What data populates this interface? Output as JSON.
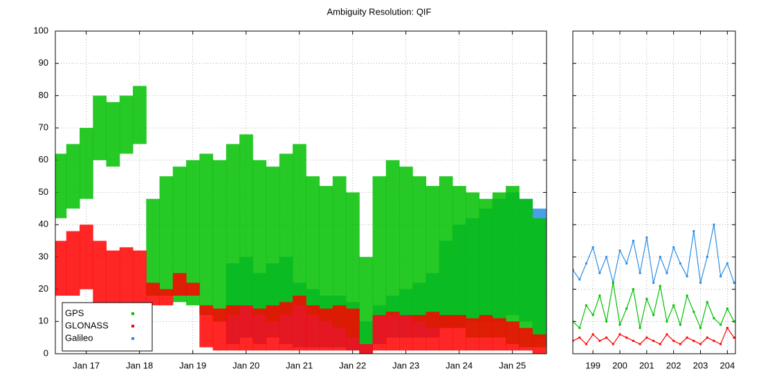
{
  "chart_data": [
    {
      "type": "band",
      "title": "Ambiguity Resolution: QIF",
      "legend": "lower left",
      "grid": true,
      "x": [
        2016.5,
        2016.75,
        2017,
        2017.25,
        2017.5,
        2017.75,
        2018,
        2018.25,
        2018.5,
        2018.75,
        2019,
        2019.25,
        2019.5,
        2019.75,
        2020,
        2020.25,
        2020.5,
        2020.75,
        2021,
        2021.25,
        2021.5,
        2021.75,
        2022,
        2022.25,
        2022.5,
        2022.75,
        2023,
        2023.25,
        2023.5,
        2023.75,
        2024,
        2024.25,
        2024.5,
        2024.75,
        2025,
        2025.25,
        2025.5
      ],
      "xlim": [
        2016.42,
        2025.64
      ],
      "xticks": [
        {
          "value": 2017,
          "label": "Jan 17"
        },
        {
          "value": 2018,
          "label": "Jan 18"
        },
        {
          "value": 2019,
          "label": "Jan 19"
        },
        {
          "value": 2020,
          "label": "Jan 20"
        },
        {
          "value": 2021,
          "label": "Jan 21"
        },
        {
          "value": 2022,
          "label": "Jan 22"
        },
        {
          "value": 2023,
          "label": "Jan 23"
        },
        {
          "value": 2024,
          "label": "Jan 24"
        },
        {
          "value": 2025,
          "label": "Jan 25"
        }
      ],
      "ylim": [
        0,
        100
      ],
      "yticks": [
        0,
        10,
        20,
        30,
        40,
        50,
        60,
        70,
        80,
        90,
        100
      ],
      "series": [
        {
          "name": "GPS",
          "color": "#00c000",
          "low": [
            42,
            45,
            48,
            60,
            58,
            62,
            65,
            18,
            18,
            16,
            15,
            12,
            10,
            12,
            15,
            12,
            10,
            12,
            15,
            12,
            10,
            8,
            5,
            3,
            12,
            12,
            12,
            10,
            8,
            8,
            8,
            5,
            5,
            5,
            3,
            2,
            2
          ],
          "high": [
            62,
            65,
            70,
            80,
            78,
            80,
            83,
            48,
            55,
            58,
            60,
            62,
            60,
            65,
            68,
            60,
            58,
            62,
            65,
            55,
            52,
            55,
            50,
            30,
            55,
            60,
            58,
            55,
            52,
            55,
            52,
            50,
            48,
            50,
            52,
            48,
            42
          ]
        },
        {
          "name": "GLONASS",
          "color": "#ff0000",
          "low": [
            18,
            18,
            20,
            15,
            12,
            15,
            15,
            15,
            15,
            18,
            18,
            2,
            1,
            1,
            1,
            1,
            1,
            1,
            1,
            1,
            1,
            1,
            1,
            0,
            1,
            1,
            1,
            1,
            1,
            1,
            1,
            1,
            1,
            1,
            1,
            1,
            0
          ],
          "high": [
            35,
            38,
            40,
            35,
            32,
            33,
            32,
            22,
            20,
            25,
            22,
            15,
            14,
            15,
            15,
            14,
            15,
            16,
            18,
            15,
            14,
            15,
            14,
            3,
            12,
            13,
            12,
            12,
            13,
            12,
            12,
            11,
            12,
            11,
            10,
            8,
            6
          ]
        },
        {
          "name": "Galileo",
          "color": "#2a8ee6",
          "low": [
            null,
            null,
            null,
            null,
            null,
            null,
            null,
            null,
            null,
            null,
            null,
            null,
            null,
            3,
            5,
            3,
            5,
            3,
            2,
            2,
            2,
            2,
            1,
            0,
            3,
            5,
            5,
            5,
            5,
            8,
            8,
            10,
            10,
            10,
            12,
            10,
            5
          ],
          "high": [
            null,
            null,
            null,
            null,
            null,
            null,
            null,
            null,
            null,
            null,
            null,
            null,
            null,
            28,
            30,
            25,
            28,
            30,
            22,
            20,
            18,
            18,
            16,
            10,
            15,
            18,
            20,
            22,
            25,
            35,
            40,
            42,
            45,
            48,
            50,
            48,
            45
          ]
        }
      ]
    },
    {
      "type": "line",
      "grid": true,
      "x": [
        198.25,
        198.5,
        198.75,
        199,
        199.25,
        199.5,
        199.75,
        200,
        200.25,
        200.5,
        200.75,
        201,
        201.25,
        201.5,
        201.75,
        202,
        202.25,
        202.5,
        202.75,
        203,
        203.25,
        203.5,
        203.75,
        204,
        204.25
      ],
      "xlim": [
        198.25,
        204.3
      ],
      "xticks": [
        199,
        200,
        201,
        202,
        203,
        204
      ],
      "ylim": [
        0,
        100
      ],
      "yticks": [
        0,
        10,
        20,
        30,
        40,
        50,
        60,
        70,
        80,
        90,
        100
      ],
      "series": [
        {
          "color": "#2a8ee6",
          "values": [
            26,
            23,
            28,
            33,
            25,
            30,
            22,
            32,
            28,
            35,
            25,
            36,
            22,
            30,
            25,
            33,
            28,
            24,
            38,
            22,
            30,
            40,
            24,
            28,
            22
          ]
        },
        {
          "color": "#00c000",
          "values": [
            10,
            8,
            15,
            12,
            18,
            10,
            22,
            9,
            14,
            20,
            8,
            17,
            12,
            21,
            10,
            15,
            9,
            18,
            13,
            8,
            16,
            11,
            9,
            14,
            10
          ]
        },
        {
          "color": "#ff0000",
          "values": [
            4,
            5,
            3,
            6,
            4,
            5,
            3,
            6,
            5,
            4,
            3,
            5,
            4,
            3,
            6,
            4,
            3,
            5,
            4,
            3,
            5,
            4,
            3,
            8,
            5
          ]
        }
      ]
    }
  ]
}
